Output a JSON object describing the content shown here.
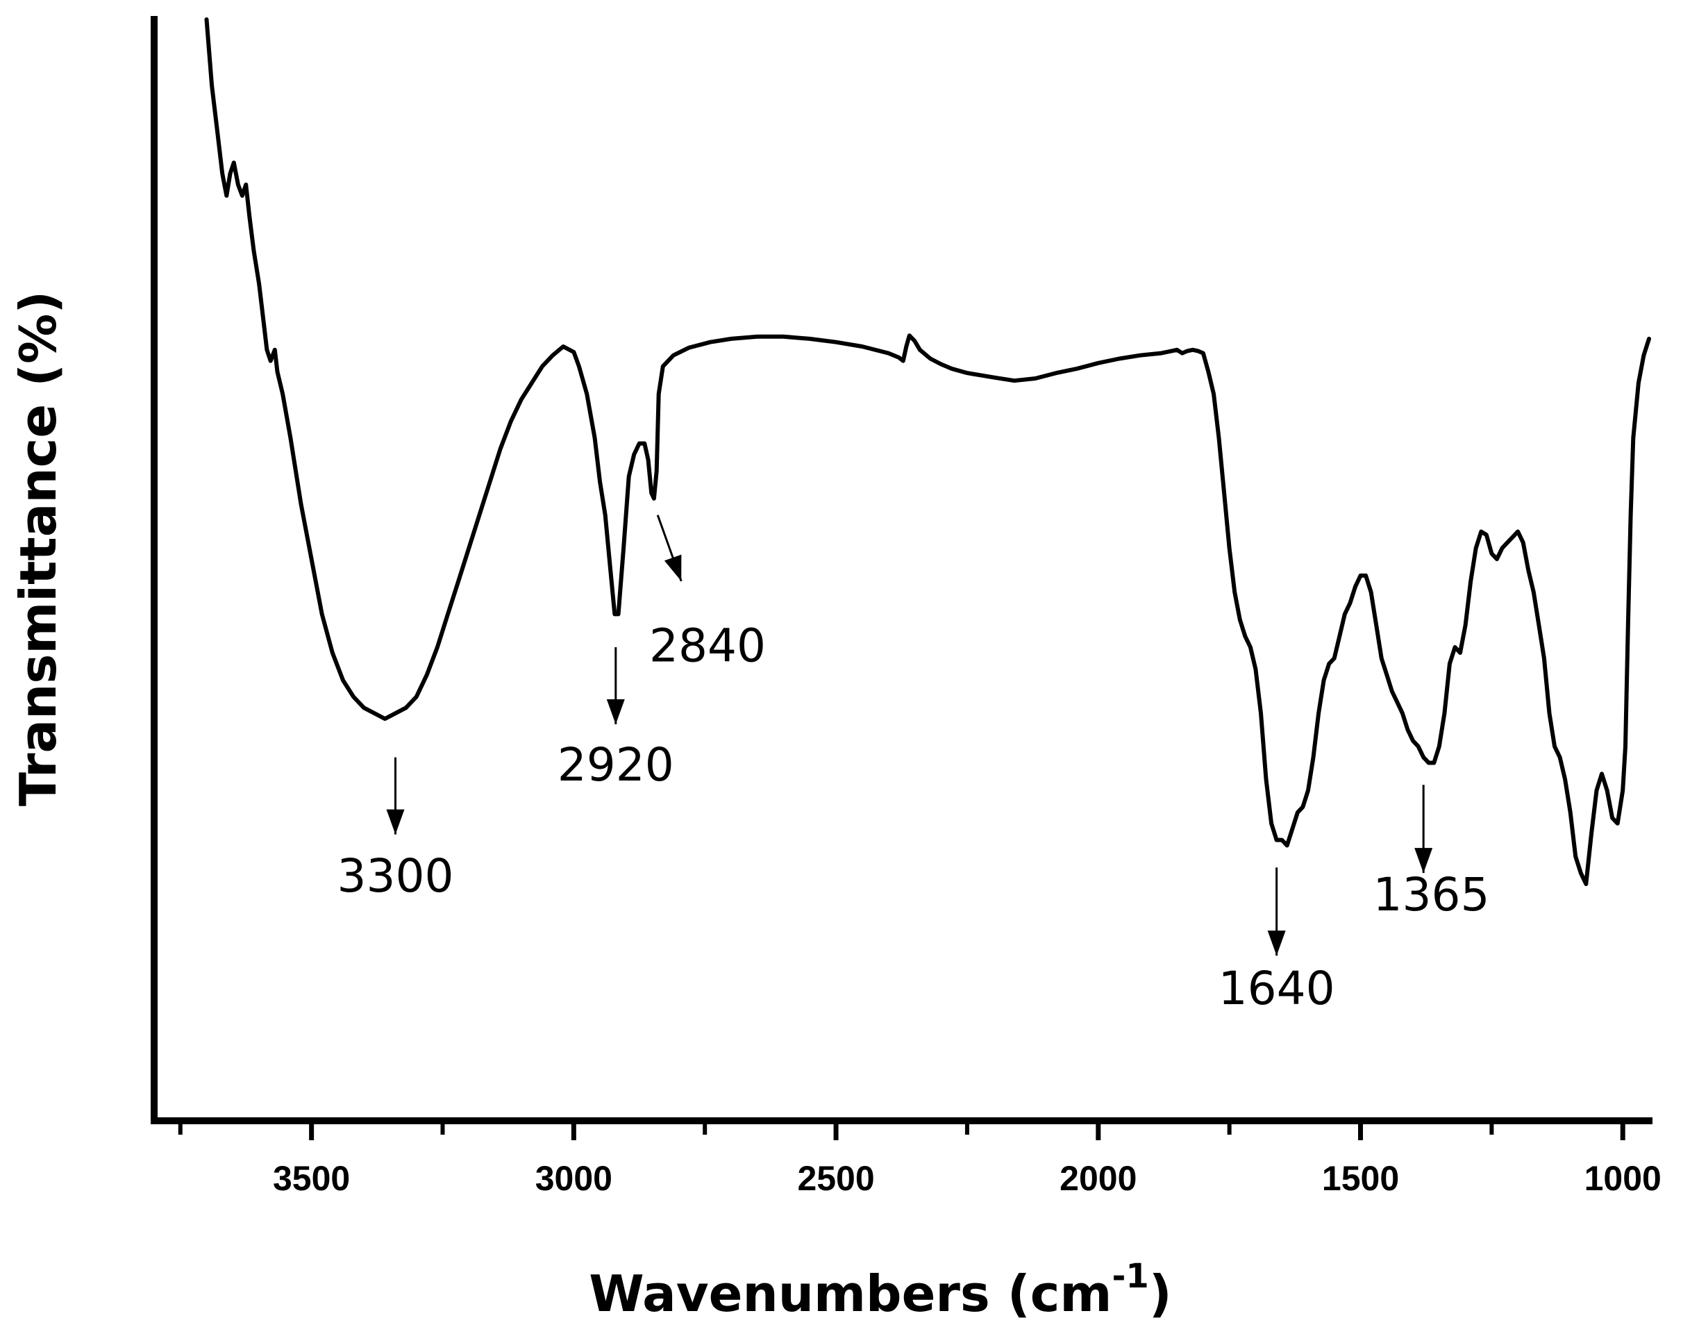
{
  "chart_data": {
    "type": "line",
    "xlabel": "Wavenumbers (cm",
    "xlabel_sup": "-1",
    "xlabel_close": ")",
    "ylabel": "Transmittance (%)",
    "xlim": [
      3800,
      950
    ],
    "x_reversed": true,
    "ylim": [
      0,
      100
    ],
    "y_ticks_labeled": false,
    "grid": false,
    "x_ticks_major": [
      3500,
      3000,
      2500,
      2000,
      1500,
      1000
    ],
    "x_tick_labels": [
      "3500",
      "3000",
      "2500",
      "2000",
      "1500",
      "1000"
    ],
    "x_ticks_minor": [
      3750,
      3250,
      2750,
      2250,
      1750,
      1250
    ],
    "line_color": "#000000",
    "series": [
      {
        "points": [
          [
            3700,
            100
          ],
          [
            3690,
            94
          ],
          [
            3680,
            90
          ],
          [
            3670,
            86
          ],
          [
            3662,
            84
          ],
          [
            3655,
            86
          ],
          [
            3648,
            87
          ],
          [
            3640,
            85
          ],
          [
            3632,
            84
          ],
          [
            3625,
            85
          ],
          [
            3618,
            82
          ],
          [
            3610,
            79
          ],
          [
            3600,
            76
          ],
          [
            3595,
            74
          ],
          [
            3585,
            70
          ],
          [
            3578,
            69
          ],
          [
            3570,
            70
          ],
          [
            3565,
            68
          ],
          [
            3555,
            66
          ],
          [
            3540,
            62
          ],
          [
            3520,
            56
          ],
          [
            3500,
            51
          ],
          [
            3480,
            46
          ],
          [
            3460,
            42.5
          ],
          [
            3440,
            40
          ],
          [
            3420,
            38.5
          ],
          [
            3400,
            37.5
          ],
          [
            3380,
            37
          ],
          [
            3360,
            36.5
          ],
          [
            3340,
            37
          ],
          [
            3320,
            37.5
          ],
          [
            3300,
            38.5
          ],
          [
            3280,
            40.5
          ],
          [
            3260,
            43
          ],
          [
            3240,
            46
          ],
          [
            3220,
            49
          ],
          [
            3200,
            52
          ],
          [
            3180,
            55
          ],
          [
            3160,
            58
          ],
          [
            3140,
            61
          ],
          [
            3120,
            63.5
          ],
          [
            3100,
            65.5
          ],
          [
            3080,
            67
          ],
          [
            3060,
            68.5
          ],
          [
            3040,
            69.5
          ],
          [
            3020,
            70.3
          ],
          [
            3000,
            69.8
          ],
          [
            2990,
            68.5
          ],
          [
            2975,
            66
          ],
          [
            2960,
            62
          ],
          [
            2950,
            58
          ],
          [
            2940,
            55
          ],
          [
            2930,
            50
          ],
          [
            2922,
            46
          ],
          [
            2915,
            46
          ],
          [
            2905,
            52
          ],
          [
            2895,
            58.5
          ],
          [
            2885,
            60.5
          ],
          [
            2875,
            61.5
          ],
          [
            2865,
            61.5
          ],
          [
            2858,
            60
          ],
          [
            2852,
            57
          ],
          [
            2847,
            56.5
          ],
          [
            2842,
            59
          ],
          [
            2838,
            66
          ],
          [
            2830,
            68.5
          ],
          [
            2810,
            69.5
          ],
          [
            2780,
            70.2
          ],
          [
            2740,
            70.7
          ],
          [
            2700,
            71
          ],
          [
            2650,
            71.2
          ],
          [
            2600,
            71.2
          ],
          [
            2550,
            71
          ],
          [
            2500,
            70.7
          ],
          [
            2450,
            70.3
          ],
          [
            2400,
            69.7
          ],
          [
            2380,
            69.3
          ],
          [
            2372,
            69
          ],
          [
            2366,
            70.3
          ],
          [
            2360,
            71.3
          ],
          [
            2350,
            70.8
          ],
          [
            2340,
            70
          ],
          [
            2320,
            69.2
          ],
          [
            2300,
            68.7
          ],
          [
            2280,
            68.3
          ],
          [
            2250,
            67.9
          ],
          [
            2200,
            67.5
          ],
          [
            2160,
            67.2
          ],
          [
            2120,
            67.4
          ],
          [
            2080,
            67.9
          ],
          [
            2040,
            68.3
          ],
          [
            2000,
            68.8
          ],
          [
            1960,
            69.2
          ],
          [
            1920,
            69.5
          ],
          [
            1880,
            69.7
          ],
          [
            1860,
            69.9
          ],
          [
            1850,
            70
          ],
          [
            1840,
            69.7
          ],
          [
            1830,
            69.9
          ],
          [
            1820,
            70
          ],
          [
            1810,
            69.9
          ],
          [
            1800,
            69.7
          ],
          [
            1790,
            68
          ],
          [
            1780,
            66
          ],
          [
            1770,
            62
          ],
          [
            1760,
            57
          ],
          [
            1750,
            52
          ],
          [
            1740,
            48
          ],
          [
            1730,
            45.5
          ],
          [
            1720,
            44
          ],
          [
            1710,
            43
          ],
          [
            1700,
            41
          ],
          [
            1690,
            37
          ],
          [
            1680,
            31
          ],
          [
            1670,
            27
          ],
          [
            1660,
            25.5
          ],
          [
            1650,
            25.5
          ],
          [
            1640,
            25
          ],
          [
            1630,
            26.5
          ],
          [
            1620,
            28
          ],
          [
            1610,
            28.5
          ],
          [
            1600,
            30
          ],
          [
            1590,
            33
          ],
          [
            1580,
            37
          ],
          [
            1570,
            40
          ],
          [
            1560,
            41.5
          ],
          [
            1550,
            42
          ],
          [
            1540,
            44
          ],
          [
            1530,
            46
          ],
          [
            1520,
            47
          ],
          [
            1510,
            48.5
          ],
          [
            1500,
            49.5
          ],
          [
            1490,
            49.5
          ],
          [
            1480,
            48
          ],
          [
            1470,
            45
          ],
          [
            1460,
            42
          ],
          [
            1450,
            40.5
          ],
          [
            1440,
            39
          ],
          [
            1430,
            38
          ],
          [
            1420,
            37
          ],
          [
            1410,
            35.5
          ],
          [
            1400,
            34.5
          ],
          [
            1390,
            34
          ],
          [
            1380,
            33
          ],
          [
            1370,
            32.5
          ],
          [
            1360,
            32.5
          ],
          [
            1350,
            34
          ],
          [
            1340,
            37
          ],
          [
            1330,
            41.5
          ],
          [
            1320,
            43
          ],
          [
            1310,
            42.5
          ],
          [
            1300,
            45
          ],
          [
            1290,
            49
          ],
          [
            1280,
            52
          ],
          [
            1270,
            53.5
          ],
          [
            1260,
            53.2
          ],
          [
            1250,
            51.5
          ],
          [
            1240,
            51
          ],
          [
            1230,
            52
          ],
          [
            1220,
            52.5
          ],
          [
            1210,
            53
          ],
          [
            1200,
            53.5
          ],
          [
            1190,
            52.5
          ],
          [
            1180,
            50
          ],
          [
            1170,
            48
          ],
          [
            1160,
            45
          ],
          [
            1150,
            42
          ],
          [
            1140,
            37
          ],
          [
            1130,
            34
          ],
          [
            1120,
            33
          ],
          [
            1110,
            31
          ],
          [
            1100,
            28
          ],
          [
            1090,
            24
          ],
          [
            1080,
            22.5
          ],
          [
            1070,
            21.5
          ],
          [
            1060,
            26
          ],
          [
            1050,
            30
          ],
          [
            1040,
            31.5
          ],
          [
            1030,
            30
          ],
          [
            1020,
            27.5
          ],
          [
            1010,
            27
          ],
          [
            1000,
            30
          ],
          [
            995,
            34
          ],
          [
            990,
            45
          ],
          [
            985,
            55
          ],
          [
            980,
            62
          ],
          [
            970,
            67
          ],
          [
            960,
            69.5
          ],
          [
            950,
            71
          ]
        ]
      }
    ],
    "annotations": [
      {
        "label": "3300",
        "arrow_from": [
          3340,
          33
        ],
        "arrow_to": [
          3340,
          26
        ],
        "text_at": [
          3340,
          20.8
        ]
      },
      {
        "label": "2920",
        "arrow_from": [
          2920,
          43
        ],
        "arrow_to": [
          2920,
          36
        ],
        "text_at": [
          2920,
          30.9
        ]
      },
      {
        "label": "2840",
        "arrow_from": [
          2840,
          55
        ],
        "arrow_to": [
          2795,
          49
        ],
        "text_at": [
          2745,
          41.7
        ]
      },
      {
        "label": "1640",
        "arrow_from": [
          1660,
          23
        ],
        "arrow_to": [
          1660,
          15
        ],
        "text_at": [
          1660,
          10.6
        ]
      },
      {
        "label": "1365",
        "arrow_from": [
          1380,
          30.5
        ],
        "arrow_to": [
          1380,
          22.5
        ],
        "text_at": [
          1365,
          19.1
        ]
      }
    ]
  }
}
